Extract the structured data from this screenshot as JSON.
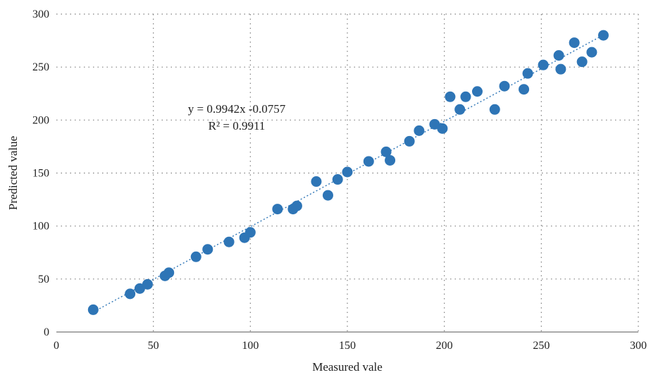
{
  "chart_data": {
    "type": "scatter",
    "xlabel": "Measured vale",
    "ylabel": "Predicted value",
    "xlim": [
      0,
      300
    ],
    "ylim": [
      0,
      300
    ],
    "xticks": [
      0,
      50,
      100,
      150,
      200,
      250,
      300
    ],
    "yticks": [
      0,
      50,
      100,
      150,
      200,
      250,
      300
    ],
    "grid": "dotted",
    "marker_color": "#2e75b6",
    "trendline_color": "#2e75b6",
    "trendline": {
      "slope": 0.9942,
      "intercept": -0.0757,
      "x_range": [
        19,
        282
      ],
      "equation_label": "y = 0.9942x -0.0757",
      "r2_label": "R² = 0.9911"
    },
    "points": [
      {
        "x": 19,
        "y": 21
      },
      {
        "x": 38,
        "y": 36
      },
      {
        "x": 43,
        "y": 41
      },
      {
        "x": 47,
        "y": 45
      },
      {
        "x": 56,
        "y": 53
      },
      {
        "x": 58,
        "y": 56
      },
      {
        "x": 72,
        "y": 71
      },
      {
        "x": 78,
        "y": 78
      },
      {
        "x": 89,
        "y": 85
      },
      {
        "x": 97,
        "y": 89
      },
      {
        "x": 100,
        "y": 94
      },
      {
        "x": 114,
        "y": 116
      },
      {
        "x": 122,
        "y": 116
      },
      {
        "x": 124,
        "y": 119
      },
      {
        "x": 134,
        "y": 142
      },
      {
        "x": 140,
        "y": 129
      },
      {
        "x": 145,
        "y": 144
      },
      {
        "x": 150,
        "y": 151
      },
      {
        "x": 161,
        "y": 161
      },
      {
        "x": 170,
        "y": 170
      },
      {
        "x": 172,
        "y": 162
      },
      {
        "x": 182,
        "y": 180
      },
      {
        "x": 187,
        "y": 190
      },
      {
        "x": 195,
        "y": 196
      },
      {
        "x": 199,
        "y": 192
      },
      {
        "x": 203,
        "y": 222
      },
      {
        "x": 208,
        "y": 210
      },
      {
        "x": 211,
        "y": 222
      },
      {
        "x": 217,
        "y": 227
      },
      {
        "x": 226,
        "y": 210
      },
      {
        "x": 231,
        "y": 232
      },
      {
        "x": 241,
        "y": 229
      },
      {
        "x": 243,
        "y": 244
      },
      {
        "x": 251,
        "y": 252
      },
      {
        "x": 259,
        "y": 261
      },
      {
        "x": 260,
        "y": 248
      },
      {
        "x": 267,
        "y": 273
      },
      {
        "x": 271,
        "y": 255
      },
      {
        "x": 276,
        "y": 264
      },
      {
        "x": 282,
        "y": 280
      }
    ]
  }
}
